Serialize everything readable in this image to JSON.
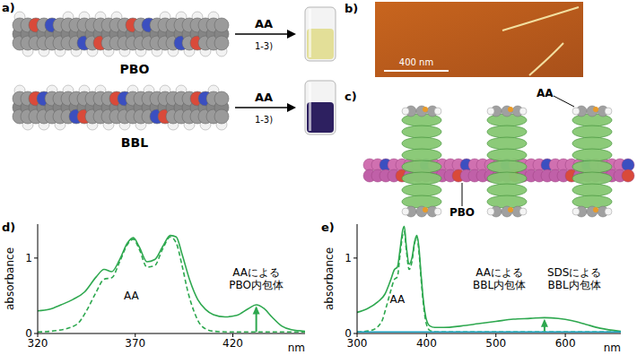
{
  "panels": {
    "a": {
      "label": "a)",
      "polymers": [
        {
          "name": "PBO",
          "color": "#e3df98"
        },
        {
          "name": "BBL",
          "color": "#2d2060"
        }
      ],
      "reagent": "AA",
      "note": "1-3)"
    },
    "b": {
      "label": "b)",
      "scale_bar": "400 nm"
    },
    "c": {
      "label": "c)",
      "host": "AA",
      "guest": "PBO"
    }
  },
  "chart_data": [
    {
      "type": "line",
      "panel_label": "d)",
      "y_label": "absorbance",
      "x_label": "nm",
      "xlim": [
        320,
        457
      ],
      "xticks": [
        320,
        370,
        420
      ],
      "ylim": [
        0,
        1.45
      ],
      "yticks": [
        0,
        1
      ],
      "arrow": {
        "x": 432,
        "from": 0.02,
        "to": 0.34,
        "color": "#2ea84f"
      },
      "series": [
        {
          "name": "AA",
          "color": "#2ea84f",
          "line_style": "dashed",
          "label_x": 368,
          "label_y": 0.5,
          "x": [
            320,
            330,
            340,
            345,
            350,
            354,
            358,
            362,
            366,
            369,
            372,
            376,
            380,
            384,
            388,
            391,
            394,
            397,
            400,
            404,
            410,
            420,
            435,
            457
          ],
          "values": [
            0.02,
            0.04,
            0.12,
            0.3,
            0.55,
            0.72,
            0.74,
            0.95,
            1.18,
            1.25,
            1.12,
            0.88,
            0.9,
            1.12,
            1.28,
            1.2,
            0.9,
            0.55,
            0.3,
            0.1,
            0.03,
            0.02,
            0.02,
            0.02
          ]
        },
        {
          "name": "AAによるPBO内包体",
          "color": "#2ea84f",
          "line_style": "solid",
          "label_x": 432,
          "label_y": 0.72,
          "x": [
            320,
            326,
            332,
            338,
            344,
            350,
            354,
            358,
            362,
            366,
            369,
            372,
            376,
            380,
            384,
            388,
            391,
            394,
            398,
            402,
            406,
            410,
            416,
            422,
            428,
            432,
            436,
            440,
            445,
            450,
            457
          ],
          "values": [
            0.3,
            0.32,
            0.38,
            0.45,
            0.55,
            0.75,
            0.85,
            0.82,
            0.98,
            1.2,
            1.27,
            1.15,
            0.95,
            0.98,
            1.15,
            1.3,
            1.28,
            1.05,
            0.7,
            0.45,
            0.32,
            0.25,
            0.22,
            0.24,
            0.33,
            0.38,
            0.33,
            0.22,
            0.1,
            0.05,
            0.03
          ]
        }
      ]
    },
    {
      "type": "line",
      "panel_label": "e)",
      "y_label": "absorbance",
      "x_label": "nm",
      "xlim": [
        300,
        680
      ],
      "xticks": [
        300,
        400,
        500,
        600
      ],
      "ylim": [
        0,
        1.45
      ],
      "yticks": [
        0,
        1
      ],
      "arrow": {
        "x": 570,
        "from": 0.03,
        "to": 0.17,
        "color": "#2ea84f"
      },
      "series": [
        {
          "name": "AA",
          "color": "#2ea84f",
          "line_style": "dashed",
          "label_x": 358,
          "label_y": 0.45,
          "x": [
            300,
            320,
            335,
            342,
            348,
            354,
            358,
            362,
            366,
            368,
            371,
            375,
            379,
            383,
            386,
            389,
            392,
            396,
            400,
            405,
            415,
            450,
            550,
            680
          ],
          "values": [
            0.02,
            0.04,
            0.15,
            0.35,
            0.55,
            0.72,
            0.75,
            1.05,
            1.32,
            1.35,
            1.1,
            0.85,
            0.95,
            1.2,
            1.28,
            1.1,
            0.75,
            0.35,
            0.12,
            0.04,
            0.02,
            0.02,
            0.02,
            0.02
          ]
        },
        {
          "name": "AAによるBBL内包体",
          "color": "#2ea84f",
          "line_style": "solid",
          "label_x": 505,
          "label_y": 0.72,
          "x": [
            300,
            315,
            330,
            340,
            348,
            354,
            358,
            362,
            366,
            368,
            371,
            375,
            379,
            383,
            386,
            389,
            392,
            396,
            400,
            405,
            412,
            425,
            450,
            475,
            500,
            525,
            550,
            570,
            590,
            610,
            630,
            650,
            680
          ],
          "values": [
            0.28,
            0.33,
            0.42,
            0.52,
            0.7,
            0.85,
            0.88,
            1.12,
            1.38,
            1.42,
            1.15,
            0.92,
            1.0,
            1.22,
            1.3,
            1.15,
            0.8,
            0.4,
            0.18,
            0.1,
            0.08,
            0.08,
            0.1,
            0.13,
            0.16,
            0.19,
            0.2,
            0.21,
            0.2,
            0.17,
            0.12,
            0.07,
            0.03
          ]
        },
        {
          "name": "SDSによるBBL内包体",
          "color": "#1a9fc0",
          "line_style": "solid",
          "label_x": 613,
          "label_y": 0.72,
          "x": [
            300,
            400,
            500,
            600,
            680
          ],
          "values": [
            0.02,
            0.02,
            0.02,
            0.02,
            0.02
          ]
        }
      ]
    }
  ]
}
